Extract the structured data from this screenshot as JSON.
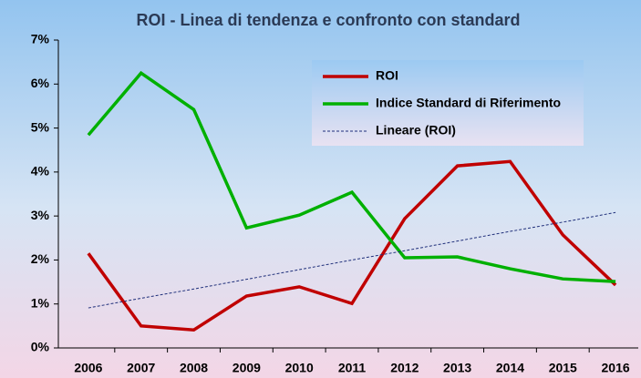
{
  "chart_data": {
    "type": "line",
    "title": "ROI - Linea di tendenza e confronto con standard",
    "categories": [
      "2006",
      "2007",
      "2008",
      "2009",
      "2010",
      "2011",
      "2012",
      "2013",
      "2014",
      "2015",
      "2016"
    ],
    "series": [
      {
        "name": "ROI",
        "color": "#c00000",
        "values": [
          2.15,
          0.5,
          0.41,
          1.18,
          1.39,
          1.01,
          2.94,
          4.14,
          4.24,
          2.57,
          1.43
        ]
      },
      {
        "name": "Indice Standard di Riferimento",
        "color": "#00b000",
        "values": [
          4.84,
          6.25,
          5.42,
          2.73,
          3.02,
          3.54,
          2.05,
          2.07,
          1.8,
          1.57,
          1.51
        ]
      },
      {
        "name": "Lineare (ROI)",
        "color": "#1f2f7a",
        "dashed": true,
        "values": [
          0.91,
          1.13,
          1.34,
          1.56,
          1.78,
          2.0,
          2.21,
          2.43,
          2.65,
          2.86,
          3.08
        ]
      }
    ],
    "ylim": [
      0,
      7
    ],
    "yticks": [
      {
        "value": 0,
        "label": "0%"
      },
      {
        "value": 1,
        "label": "1%"
      },
      {
        "value": 2,
        "label": "2%"
      },
      {
        "value": 3,
        "label": "3%"
      },
      {
        "value": 4,
        "label": "4%"
      },
      {
        "value": 5,
        "label": "5%"
      },
      {
        "value": 6,
        "label": "6%"
      },
      {
        "value": 7,
        "label": "7%"
      }
    ],
    "legend": "top-right"
  }
}
